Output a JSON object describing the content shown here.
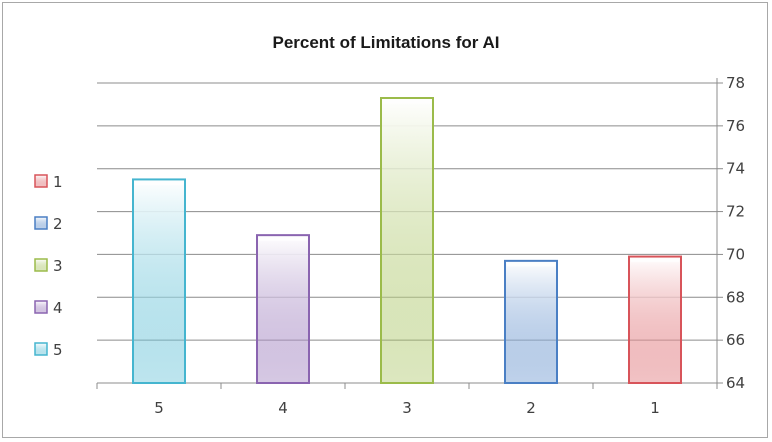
{
  "chart_data": {
    "type": "bar",
    "title": "Percent of Limitations for AI",
    "xlabel": "",
    "ylabel": "",
    "categories": [
      "5",
      "4",
      "3",
      "2",
      "1"
    ],
    "values": [
      73.5,
      70.9,
      77.3,
      69.7,
      69.9
    ],
    "ylim": [
      64,
      78
    ],
    "yticks": [
      "64",
      "66",
      "68",
      "70",
      "72",
      "74",
      "76",
      "78"
    ],
    "y_axis_side": "right",
    "grid": true,
    "legend": {
      "position": "left",
      "entries": [
        "1",
        "2",
        "3",
        "4",
        "5"
      ]
    },
    "colors": {
      "1": "#d8545a",
      "2": "#4a7fc4",
      "3": "#9bbb4a",
      "4": "#8a64b0",
      "5": "#45b5cf"
    }
  }
}
